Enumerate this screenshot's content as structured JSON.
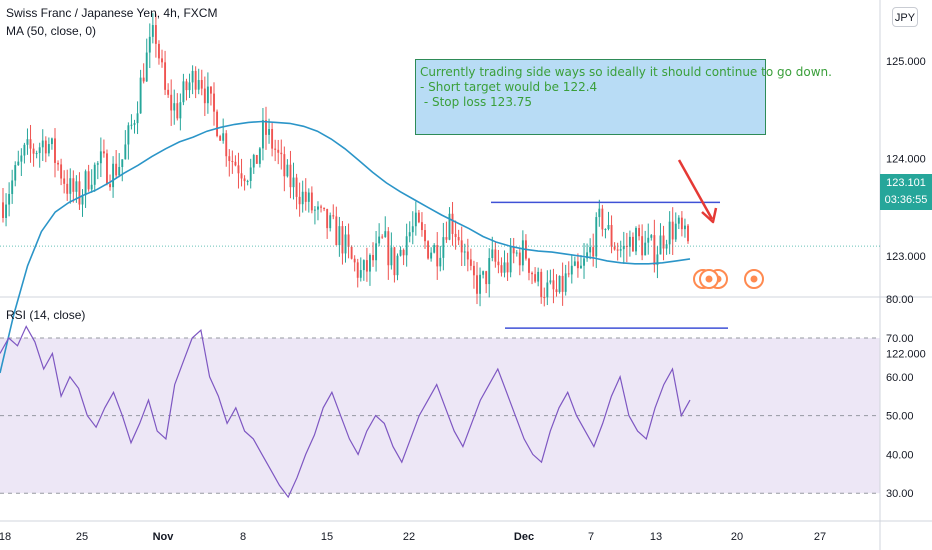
{
  "legend": {
    "title": "Swiss Franc / Japanese Yen, 4h, FXCM",
    "indicator": "MA (50, close, 0)",
    "rsi": "RSI (14, close)"
  },
  "currency": "JPY",
  "last_price": "123.101",
  "countdown": "03:36:55",
  "annotation": {
    "lines": [
      "Currently trading side ways so ideally it should continue to go down.",
      "",
      "- Short target would be 122.4",
      " - Stop loss 123.75"
    ]
  },
  "colors": {
    "up": "#26a69a",
    "down": "#ef5350",
    "ma": "#2b95c8",
    "rsi": "#7e57c2",
    "rsi_band": "#ede7f6",
    "hline": "#3f51d6",
    "arrow": "#e53935",
    "event": "#ff8a50"
  },
  "chart_data": [
    {
      "type": "candlestick",
      "title": "Swiss Franc / Japanese Yen, 4h, FXCM",
      "y_axis_ticks": [
        "125.000",
        "124.000",
        "123.000",
        "122.000"
      ],
      "ylim": [
        121.6,
        125.75
      ],
      "x_axis_ticks": [
        "18",
        "25",
        "Nov",
        "8",
        "15",
        "22",
        "Dec",
        "7",
        "13",
        "20",
        "27"
      ],
      "close_path": [
        123.55,
        123.8,
        124.05,
        124.1,
        124.2,
        123.95,
        123.7,
        123.6,
        123.85,
        123.95,
        123.85,
        124.0,
        124.4,
        124.95,
        125.3,
        124.6,
        124.5,
        124.75,
        124.9,
        124.55,
        124.3,
        124.0,
        123.9,
        123.85,
        124.3,
        124.1,
        123.8,
        123.7,
        123.55,
        123.4,
        123.3,
        123.2,
        122.95,
        122.8,
        122.95,
        123.15,
        122.9,
        123.2,
        123.3,
        123.1,
        123.05,
        123.4,
        123.2,
        122.75,
        122.7,
        122.95,
        122.85,
        123.0,
        123.05,
        122.75,
        122.65,
        122.6,
        122.8,
        122.8,
        123.05,
        123.4,
        123.15,
        123.05,
        123.2,
        123.1,
        123.05,
        123.25,
        123.3,
        123.1
      ],
      "series": [
        {
          "name": "MA (50, close, 0)",
          "values": [
            121.8,
            122.4,
            122.9,
            123.25,
            123.45,
            123.55,
            123.62,
            123.68,
            123.76,
            123.85,
            123.93,
            124.02,
            124.1,
            124.17,
            124.22,
            124.28,
            124.32,
            124.35,
            124.37,
            124.38,
            124.37,
            124.36,
            124.33,
            124.28,
            124.2,
            124.1,
            123.98,
            123.86,
            123.75,
            123.66,
            123.58,
            123.5,
            123.42,
            123.35,
            123.28,
            123.2,
            123.14,
            123.1,
            123.07,
            123.05,
            123.04,
            123.02,
            123.0,
            122.98,
            122.95,
            122.93,
            122.92,
            122.92,
            122.93,
            122.95,
            122.97
          ]
        }
      ],
      "horizontal_levels": [
        {
          "from_x_index": 491,
          "to_x_index": 720,
          "value": 123.55
        },
        {
          "from_x_index": 505,
          "to_x_index": 728,
          "value": 122.26
        }
      ]
    },
    {
      "type": "line",
      "title": "RSI (14, close)",
      "y_axis_ticks": [
        "80.00",
        "70.00",
        "60.00",
        "50.00",
        "40.00",
        "30.00"
      ],
      "ylim": [
        27,
        81
      ],
      "band": [
        30,
        70
      ],
      "midline": 50,
      "series": [
        {
          "name": "RSI (14, close)",
          "values": [
            66,
            70,
            68,
            73,
            69,
            62,
            66,
            55,
            60,
            57,
            50,
            47,
            52,
            56,
            50,
            43,
            48,
            54,
            46,
            44,
            58,
            64,
            70,
            72,
            60,
            55,
            48,
            52,
            46,
            44,
            40,
            36,
            32,
            29,
            34,
            40,
            45,
            52,
            56,
            50,
            44,
            40,
            46,
            50,
            48,
            42,
            38,
            44,
            50,
            54,
            58,
            52,
            46,
            42,
            48,
            54,
            58,
            62,
            56,
            50,
            44,
            40,
            38,
            46,
            52,
            56,
            50,
            46,
            42,
            48,
            55,
            60,
            50,
            46,
            44,
            52,
            58,
            62,
            50,
            54
          ]
        }
      ]
    }
  ]
}
